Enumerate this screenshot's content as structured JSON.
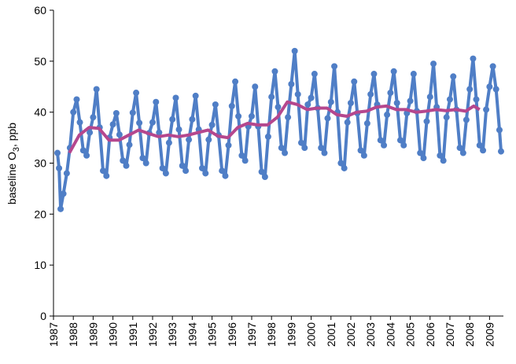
{
  "chart_data": {
    "type": "line",
    "y_label": {
      "text": "baseline O",
      "subscript": "3",
      "suffix": ", ppb"
    },
    "xlim": [
      1987,
      2009.7
    ],
    "ylim": [
      0,
      60
    ],
    "xticks": [
      1987,
      1988,
      1989,
      1990,
      1991,
      1992,
      1993,
      1994,
      1995,
      1996,
      1997,
      1998,
      1999,
      2000,
      2001,
      2002,
      2003,
      2004,
      2005,
      2006,
      2007,
      2008,
      2009
    ],
    "yticks": [
      0,
      10,
      20,
      30,
      40,
      50,
      60
    ],
    "grid": false,
    "series": [
      {
        "color": "#4f7ec6",
        "markers": true,
        "x": [
          1987.2,
          1987.28,
          1987.36,
          1987.5,
          1987.67,
          1987.83,
          1988,
          1988.17,
          1988.33,
          1988.5,
          1988.67,
          1988.83,
          1989,
          1989.17,
          1989.33,
          1989.5,
          1989.67,
          1989.83,
          1990,
          1990.17,
          1990.33,
          1990.5,
          1990.67,
          1990.83,
          1991,
          1991.17,
          1991.33,
          1991.5,
          1991.67,
          1991.83,
          1992,
          1992.17,
          1992.33,
          1992.5,
          1992.67,
          1992.83,
          1993,
          1993.17,
          1993.33,
          1993.5,
          1993.67,
          1993.83,
          1994,
          1994.17,
          1994.33,
          1994.5,
          1994.67,
          1994.83,
          1995,
          1995.17,
          1995.33,
          1995.5,
          1995.67,
          1995.83,
          1996,
          1996.17,
          1996.33,
          1996.5,
          1996.67,
          1996.83,
          1997,
          1997.17,
          1997.33,
          1997.5,
          1997.67,
          1997.83,
          1998,
          1998.17,
          1998.33,
          1998.5,
          1998.67,
          1998.83,
          1999,
          1999.17,
          1999.33,
          1999.5,
          1999.67,
          1999.83,
          2000,
          2000.17,
          2000.33,
          2000.5,
          2000.67,
          2000.83,
          2001,
          2001.17,
          2001.33,
          2001.5,
          2001.67,
          2001.83,
          2002,
          2002.17,
          2002.33,
          2002.5,
          2002.67,
          2002.83,
          2003,
          2003.17,
          2003.33,
          2003.5,
          2003.67,
          2003.83,
          2004,
          2004.17,
          2004.33,
          2004.5,
          2004.67,
          2004.83,
          2005,
          2005.17,
          2005.33,
          2005.5,
          2005.67,
          2005.83,
          2006,
          2006.17,
          2006.33,
          2006.5,
          2006.67,
          2006.83,
          2007,
          2007.17,
          2007.33,
          2007.5,
          2007.67,
          2007.83,
          2008,
          2008.17,
          2008.33,
          2008.5,
          2008.67,
          2008.83,
          2009,
          2009.17,
          2009.33,
          2009.5,
          2009.58
        ],
        "values": [
          32,
          29,
          21,
          24,
          28,
          33,
          40,
          42.5,
          38,
          32.5,
          31.5,
          36,
          39,
          44.5,
          37,
          28.5,
          27.5,
          35,
          37.6,
          39.8,
          35.6,
          30.5,
          29.5,
          33.6,
          39.9,
          43.8,
          37.9,
          31,
          30,
          35.9,
          38,
          42,
          36,
          29,
          28,
          34,
          38.6,
          42.8,
          36.6,
          29.5,
          28.5,
          34.6,
          38.6,
          43.2,
          36.6,
          29,
          28,
          34.6,
          37.5,
          41.5,
          35.5,
          28.5,
          27.5,
          33.5,
          41.2,
          46,
          39.2,
          31.5,
          30.5,
          37.2,
          39.2,
          45,
          37.2,
          28.3,
          27.3,
          35.2,
          43,
          48,
          41,
          33,
          32,
          39,
          45.5,
          52,
          43.5,
          34,
          33,
          41.5,
          42.8,
          47.5,
          40.8,
          33,
          32,
          38.8,
          42,
          49,
          40,
          30,
          29,
          38,
          41.8,
          46,
          39.8,
          32.5,
          31.5,
          37.8,
          43.5,
          47.5,
          41.5,
          34.5,
          33.5,
          39.5,
          43.8,
          48,
          41.8,
          34.5,
          33.5,
          39.8,
          42.2,
          47.5,
          40.2,
          32,
          31,
          38.2,
          43,
          49.5,
          41,
          31.5,
          30.5,
          39,
          42.5,
          47,
          40.5,
          33,
          32,
          38.5,
          44.5,
          50.5,
          42.5,
          33.5,
          32.5,
          40.5,
          45,
          49,
          44.5,
          36.5,
          32.3
        ]
      },
      {
        "color": "#b5478e",
        "markers": false,
        "x": [
          1987.8,
          1988.3,
          1988.8,
          1989.3,
          1989.8,
          1990.3,
          1990.8,
          1991.3,
          1991.8,
          1992.3,
          1992.8,
          1993.3,
          1993.8,
          1994.3,
          1994.8,
          1995.3,
          1995.8,
          1996.3,
          1996.8,
          1997.3,
          1997.8,
          1998.3,
          1998.8,
          1999.3,
          1999.8,
          2000.3,
          2000.8,
          2001.3,
          2001.8,
          2002.3,
          2002.8,
          2003.3,
          2003.8,
          2004.3,
          2004.8,
          2005.3,
          2005.8,
          2006.3,
          2006.8,
          2007.3,
          2007.8,
          2008.2,
          2008.5
        ],
        "values": [
          32,
          35.5,
          37,
          36.8,
          34.5,
          34.5,
          35.5,
          36.5,
          35.8,
          35.2,
          35.5,
          35.2,
          35.5,
          36,
          36.5,
          35.3,
          35,
          37,
          37.8,
          37.5,
          37.5,
          39,
          42,
          41.5,
          40.5,
          40.8,
          40.8,
          39.5,
          39.2,
          40,
          40.2,
          41,
          41.2,
          40.5,
          40.5,
          40,
          40.2,
          40.5,
          40.3,
          40.5,
          40.2,
          41.2,
          40.5
        ]
      }
    ]
  }
}
